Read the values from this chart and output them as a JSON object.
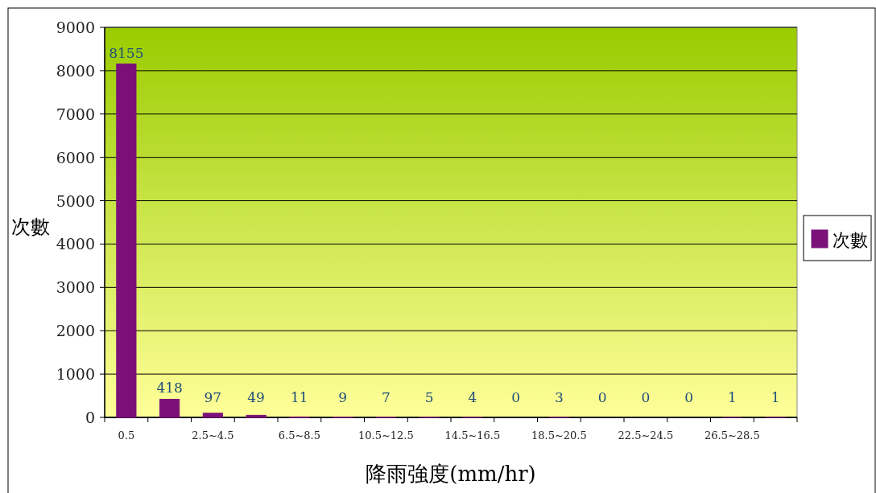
{
  "chart_data": {
    "type": "bar",
    "xlabel": "降雨強度(mm/hr)",
    "ylabel": "次數",
    "categories": [
      "0.5",
      null,
      "2.5~4.5",
      null,
      "6.5~8.5",
      null,
      "10.5~12.5",
      null,
      "14.5~16.5",
      null,
      "18.5~20.5",
      null,
      "22.5~24.5",
      null,
      "26.5~28.5",
      null
    ],
    "series": [
      {
        "name": "次數",
        "color": "#7b1178",
        "values": [
          8155,
          418,
          97,
          49,
          11,
          9,
          7,
          5,
          4,
          0,
          3,
          0,
          0,
          0,
          1,
          1
        ]
      }
    ],
    "ylim": [
      0,
      9000
    ],
    "yticks": [
      0,
      1000,
      2000,
      3000,
      4000,
      5000,
      6000,
      7000,
      8000,
      9000
    ],
    "grid": "y",
    "data_labels": true,
    "legend": "right"
  }
}
